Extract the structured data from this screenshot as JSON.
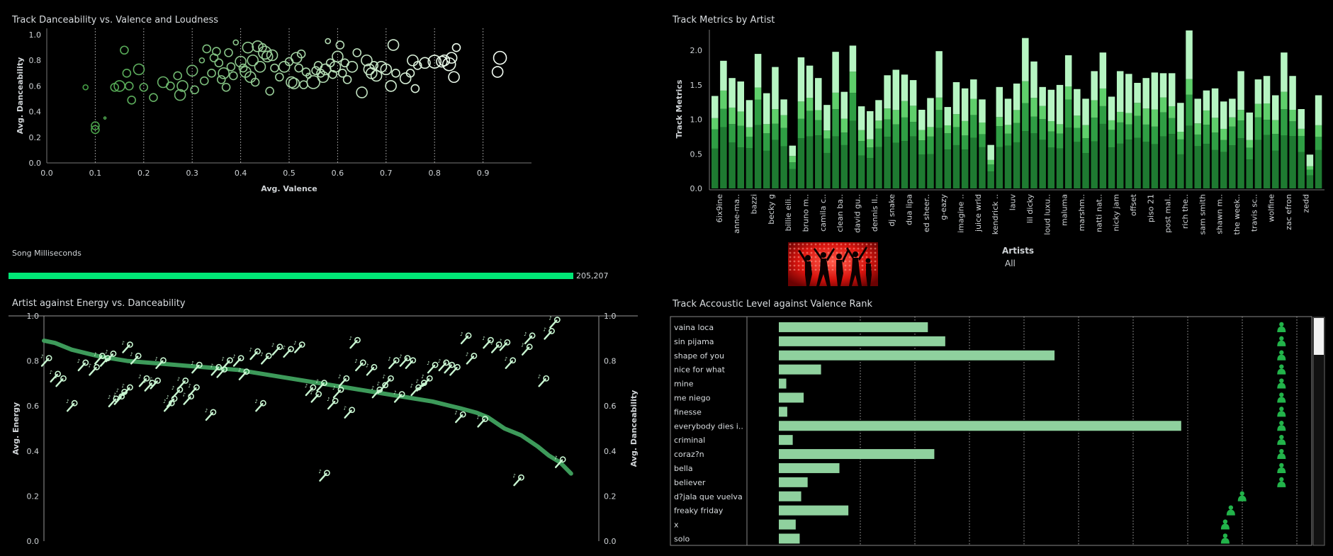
{
  "scatter": {
    "title": "Track Danceability vs. Valence and Loudness",
    "chart_data": {
      "type": "scatter",
      "xlabel": "Avg. Valence",
      "ylabel": "Avg. Danceability",
      "xlim": [
        0,
        1.0
      ],
      "ylim": [
        0,
        1.05
      ],
      "xticks": [
        "0.0",
        "0.1",
        "0.2",
        "0.3",
        "0.4",
        "0.5",
        "0.6",
        "0.7",
        "0.8",
        "0.9"
      ],
      "yticks": [
        "0.0",
        "0.2",
        "0.4",
        "0.6",
        "0.8",
        "1.0"
      ],
      "grid": "vertical dotted",
      "points": [
        [
          0.08,
          0.59,
          1
        ],
        [
          0.1,
          0.26,
          2
        ],
        [
          0.1,
          0.29,
          2
        ],
        [
          0.12,
          0.35,
          0
        ],
        [
          0.14,
          0.59,
          2
        ],
        [
          0.15,
          0.6,
          3
        ],
        [
          0.16,
          0.88,
          2
        ],
        [
          0.165,
          0.7,
          2
        ],
        [
          0.17,
          0.6,
          2
        ],
        [
          0.175,
          0.49,
          2
        ],
        [
          0.19,
          0.73,
          3
        ],
        [
          0.2,
          0.59,
          2
        ],
        [
          0.22,
          0.51,
          2
        ],
        [
          0.24,
          0.63,
          3
        ],
        [
          0.255,
          0.6,
          2
        ],
        [
          0.27,
          0.68,
          2
        ],
        [
          0.275,
          0.53,
          3
        ],
        [
          0.28,
          0.6,
          3
        ],
        [
          0.3,
          0.72,
          3
        ],
        [
          0.305,
          0.57,
          2
        ],
        [
          0.32,
          0.8,
          1
        ],
        [
          0.325,
          0.64,
          2
        ],
        [
          0.33,
          0.89,
          2
        ],
        [
          0.34,
          0.7,
          2
        ],
        [
          0.345,
          0.82,
          2
        ],
        [
          0.35,
          0.87,
          2
        ],
        [
          0.355,
          0.78,
          2
        ],
        [
          0.36,
          0.65,
          2
        ],
        [
          0.365,
          0.7,
          3
        ],
        [
          0.37,
          0.59,
          2
        ],
        [
          0.375,
          0.86,
          2
        ],
        [
          0.38,
          0.75,
          2
        ],
        [
          0.385,
          0.68,
          2
        ],
        [
          0.39,
          0.94,
          1
        ],
        [
          0.4,
          0.79,
          3
        ],
        [
          0.405,
          0.74,
          2
        ],
        [
          0.41,
          0.71,
          3
        ],
        [
          0.415,
          0.9,
          3
        ],
        [
          0.42,
          0.67,
          3
        ],
        [
          0.425,
          0.8,
          3
        ],
        [
          0.43,
          0.63,
          2
        ],
        [
          0.435,
          0.91,
          3
        ],
        [
          0.44,
          0.75,
          3
        ],
        [
          0.445,
          0.9,
          2
        ],
        [
          0.45,
          0.86,
          4
        ],
        [
          0.455,
          0.83,
          3
        ],
        [
          0.46,
          0.56,
          2
        ],
        [
          0.465,
          0.84,
          3
        ],
        [
          0.47,
          0.74,
          2
        ],
        [
          0.48,
          0.67,
          2
        ],
        [
          0.49,
          0.75,
          3
        ],
        [
          0.5,
          0.79,
          2
        ],
        [
          0.505,
          0.63,
          3
        ],
        [
          0.51,
          0.62,
          3
        ],
        [
          0.515,
          0.82,
          3
        ],
        [
          0.52,
          0.74,
          2
        ],
        [
          0.525,
          0.85,
          2
        ],
        [
          0.53,
          0.61,
          2
        ],
        [
          0.535,
          0.71,
          2
        ],
        [
          0.54,
          0.68,
          1
        ],
        [
          0.55,
          0.63,
          4
        ],
        [
          0.555,
          0.72,
          2
        ],
        [
          0.56,
          0.76,
          2
        ],
        [
          0.565,
          0.7,
          2
        ],
        [
          0.57,
          0.67,
          3
        ],
        [
          0.575,
          0.73,
          3
        ],
        [
          0.58,
          0.95,
          1
        ],
        [
          0.585,
          0.78,
          2
        ],
        [
          0.59,
          0.69,
          2
        ],
        [
          0.595,
          0.75,
          3
        ],
        [
          0.6,
          0.83,
          3
        ],
        [
          0.605,
          0.92,
          2
        ],
        [
          0.61,
          0.7,
          2
        ],
        [
          0.615,
          0.78,
          2
        ],
        [
          0.62,
          0.65,
          2
        ],
        [
          0.63,
          0.75,
          3
        ],
        [
          0.64,
          0.86,
          2
        ],
        [
          0.65,
          0.55,
          3
        ],
        [
          0.66,
          0.8,
          3
        ],
        [
          0.665,
          0.73,
          3
        ],
        [
          0.67,
          0.7,
          3
        ],
        [
          0.675,
          0.76,
          2
        ],
        [
          0.68,
          0.68,
          3
        ],
        [
          0.69,
          0.75,
          3
        ],
        [
          0.7,
          0.73,
          3
        ],
        [
          0.71,
          0.6,
          3
        ],
        [
          0.715,
          0.92,
          3
        ],
        [
          0.72,
          0.7,
          2
        ],
        [
          0.74,
          0.66,
          3
        ],
        [
          0.75,
          0.7,
          2
        ],
        [
          0.755,
          0.8,
          3
        ],
        [
          0.76,
          0.58,
          2
        ],
        [
          0.765,
          0.76,
          2
        ],
        [
          0.78,
          0.78,
          3
        ],
        [
          0.8,
          0.79,
          4
        ],
        [
          0.815,
          0.79,
          3
        ],
        [
          0.82,
          0.8,
          3
        ],
        [
          0.83,
          0.77,
          4
        ],
        [
          0.835,
          0.82,
          3
        ],
        [
          0.84,
          0.67,
          3
        ],
        [
          0.845,
          0.9,
          2
        ],
        [
          0.93,
          0.71,
          3
        ],
        [
          0.935,
          0.82,
          4
        ]
      ]
    }
  },
  "metrics": {
    "title": "Track Metrics by Artist",
    "chart_data": {
      "type": "bar",
      "stacked": true,
      "ylabel": "Track Metrics",
      "ylim": [
        0,
        2.3
      ],
      "yticks": [
        "0.0",
        "0.5",
        "1.0",
        "1.5",
        "2.0"
      ],
      "totals": [
        1.34,
        1.85,
        1.6,
        1.55,
        1.28,
        1.95,
        1.38,
        1.76,
        1.29,
        0.62,
        1.9,
        1.78,
        1.6,
        1.21,
        1.98,
        1.4,
        2.07,
        1.19,
        1.12,
        1.28,
        1.64,
        1.72,
        1.65,
        1.57,
        1.14,
        1.31,
        1.99,
        1.18,
        1.54,
        1.45,
        1.58,
        1.29,
        0.63,
        1.47,
        1.3,
        1.52,
        2.18,
        1.84,
        1.47,
        1.43,
        1.5,
        1.93,
        1.44,
        1.3,
        1.7,
        1.97,
        1.33,
        1.7,
        1.66,
        1.53,
        1.6,
        1.68,
        1.67,
        1.67,
        1.24,
        2.29,
        1.3,
        1.42,
        1.45,
        1.26,
        1.3,
        1.7,
        1.1,
        1.58,
        1.63,
        1.35,
        1.97,
        1.63,
        1.15,
        0.49,
        1.35
      ],
      "fractions": [
        0.43,
        0.17,
        0.12,
        0.28
      ],
      "tick_labels": [
        "6ix9ine",
        "anne-ma..",
        "bazzi",
        "becky g",
        "billie eili..",
        "bruno m..",
        "camila c..",
        "clean ba..",
        "david gu..",
        "dennis ll..",
        "dj snake",
        "dua lipa",
        "ed sheer..",
        "g-eazy",
        "imagine ..",
        "juice wrld",
        "kendrick ..",
        "lauv",
        "lil dicky",
        "loud luxu..",
        "maluma",
        "marshm..",
        "natti nat..",
        "nicky jam",
        "offset",
        "piso 21",
        "post mal..",
        "rich the..",
        "sam smith",
        "shawn m..",
        "the week..",
        "travis sc..",
        "wolfine",
        "zac efron",
        "zedd"
      ]
    }
  },
  "duration": {
    "title": "Song Milliseconds",
    "value_label": "205,207",
    "fraction": 1.0
  },
  "filter": {
    "label": "Artists",
    "value": "All",
    "image_icon": "dancers-image"
  },
  "energy": {
    "title": "Artist against Energy vs. Danceability",
    "chart_data": {
      "type": "scatter",
      "ylabel": "Avg. Energy",
      "ylabel2": "Avg. Danceability",
      "ylim": [
        0,
        1.0
      ],
      "yticks": [
        "0.0",
        "0.2",
        "0.4",
        "0.6",
        "0.8",
        "1.0"
      ],
      "energy_points": [
        [
          0.004,
          0.8
        ],
        [
          0.02,
          0.73
        ],
        [
          0.03,
          0.71
        ],
        [
          0.05,
          0.6
        ],
        [
          0.07,
          0.78
        ],
        [
          0.09,
          0.76
        ],
        [
          0.1,
          0.81
        ],
        [
          0.11,
          0.8
        ],
        [
          0.12,
          0.82
        ],
        [
          0.125,
          0.62
        ],
        [
          0.135,
          0.63
        ],
        [
          0.14,
          0.65
        ],
        [
          0.15,
          0.67
        ],
        [
          0.15,
          0.86
        ],
        [
          0.165,
          0.81
        ],
        [
          0.18,
          0.71
        ],
        [
          0.19,
          0.69
        ],
        [
          0.2,
          0.7
        ],
        [
          0.21,
          0.79
        ],
        [
          0.225,
          0.6
        ],
        [
          0.23,
          0.62
        ],
        [
          0.24,
          0.66
        ],
        [
          0.25,
          0.7
        ],
        [
          0.26,
          0.63
        ],
        [
          0.27,
          0.67
        ],
        [
          0.275,
          0.77
        ],
        [
          0.3,
          0.56
        ],
        [
          0.31,
          0.76
        ],
        [
          0.32,
          0.75
        ],
        [
          0.33,
          0.79
        ],
        [
          0.35,
          0.8
        ],
        [
          0.36,
          0.74
        ],
        [
          0.38,
          0.83
        ],
        [
          0.39,
          0.6
        ],
        [
          0.4,
          0.81
        ],
        [
          0.42,
          0.85
        ],
        [
          0.44,
          0.84
        ],
        [
          0.46,
          0.86
        ],
        [
          0.48,
          0.67
        ],
        [
          0.49,
          0.64
        ],
        [
          0.5,
          0.69
        ],
        [
          0.505,
          0.29
        ],
        [
          0.52,
          0.61
        ],
        [
          0.53,
          0.66
        ],
        [
          0.54,
          0.71
        ],
        [
          0.55,
          0.57
        ],
        [
          0.56,
          0.88
        ],
        [
          0.57,
          0.78
        ],
        [
          0.59,
          0.76
        ],
        [
          0.6,
          0.66
        ],
        [
          0.61,
          0.68
        ],
        [
          0.62,
          0.71
        ],
        [
          0.63,
          0.79
        ],
        [
          0.64,
          0.64
        ],
        [
          0.65,
          0.8
        ],
        [
          0.66,
          0.79
        ],
        [
          0.67,
          0.67
        ],
        [
          0.68,
          0.69
        ],
        [
          0.69,
          0.71
        ],
        [
          0.7,
          0.77
        ],
        [
          0.72,
          0.78
        ],
        [
          0.73,
          0.77
        ],
        [
          0.74,
          0.76
        ],
        [
          0.75,
          0.55
        ],
        [
          0.76,
          0.9
        ],
        [
          0.77,
          0.81
        ],
        [
          0.79,
          0.53
        ],
        [
          0.8,
          0.88
        ],
        [
          0.815,
          0.86
        ],
        [
          0.83,
          0.87
        ],
        [
          0.84,
          0.79
        ],
        [
          0.855,
          0.27
        ],
        [
          0.87,
          0.85
        ],
        [
          0.875,
          0.9
        ],
        [
          0.9,
          0.71
        ],
        [
          0.91,
          0.92
        ],
        [
          0.92,
          0.97
        ],
        [
          0.93,
          0.35
        ]
      ],
      "danceability_line": [
        [
          0.0,
          0.89
        ],
        [
          0.02,
          0.88
        ],
        [
          0.05,
          0.85
        ],
        [
          0.1,
          0.82
        ],
        [
          0.15,
          0.8
        ],
        [
          0.2,
          0.79
        ],
        [
          0.25,
          0.78
        ],
        [
          0.3,
          0.77
        ],
        [
          0.35,
          0.76
        ],
        [
          0.4,
          0.74
        ],
        [
          0.45,
          0.72
        ],
        [
          0.5,
          0.7
        ],
        [
          0.55,
          0.68
        ],
        [
          0.6,
          0.66
        ],
        [
          0.65,
          0.64
        ],
        [
          0.7,
          0.62
        ],
        [
          0.75,
          0.59
        ],
        [
          0.78,
          0.57
        ],
        [
          0.8,
          0.55
        ],
        [
          0.83,
          0.5
        ],
        [
          0.86,
          0.47
        ],
        [
          0.89,
          0.42
        ],
        [
          0.91,
          0.38
        ],
        [
          0.93,
          0.35
        ],
        [
          0.95,
          0.3
        ]
      ]
    }
  },
  "acoustic": {
    "title": "Track Accoustic Level against Valence Rank",
    "chart_data": {
      "type": "bar",
      "orientation": "horizontal",
      "categories": [
        "vaina loca",
        "sin pijama",
        "shape of you",
        "nice for what",
        "mine",
        "me niego",
        "finesse",
        "everybody dies i..",
        "criminal",
        "coraz?n",
        "bella",
        "believer",
        "d?jala que vuelva",
        "freaky friday",
        "x",
        "solo"
      ],
      "values": [
        0.3,
        0.335,
        0.555,
        0.085,
        0.015,
        0.05,
        0.017,
        0.81,
        0.028,
        0.313,
        0.122,
        0.058,
        0.045,
        0.14,
        0.034,
        0.042
      ],
      "valence_rank_icon_x": [
        0.95,
        0.95,
        0.95,
        0.95,
        0.95,
        0.95,
        0.95,
        0.95,
        0.95,
        0.95,
        0.95,
        0.95,
        0.88,
        0.86,
        0.85,
        0.85
      ],
      "icon": "person-icon"
    }
  },
  "colors": {
    "bg": "#000000",
    "accent": "#00e676",
    "light_green": "#b6f5c2",
    "mid_green": "#5fcf6b",
    "dark_green": "#2f9e44",
    "deep_green": "#1e7a31",
    "bar_green": "#8fd19e",
    "line_green": "#3d9a5a",
    "icon_green": "#22b34a"
  }
}
